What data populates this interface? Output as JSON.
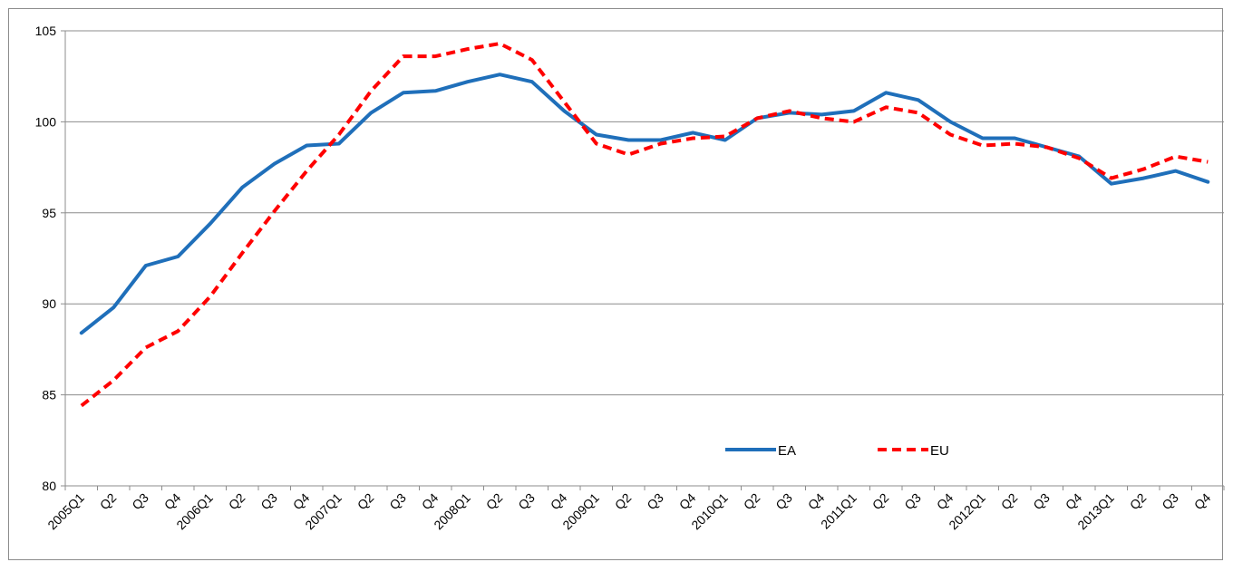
{
  "chart_data": {
    "type": "line",
    "title": "",
    "xlabel": "",
    "ylabel": "",
    "ylim": [
      80,
      105
    ],
    "yticks": [
      80,
      85,
      90,
      95,
      100,
      105
    ],
    "grid": "horizontal",
    "legend_placement": "bottom-right",
    "categories": [
      "2005Q1",
      "Q2",
      "Q3",
      "Q4",
      "2006Q1",
      "Q2",
      "Q3",
      "Q4",
      "2007Q1",
      "Q2",
      "Q3",
      "Q4",
      "2008Q1",
      "Q2",
      "Q3",
      "Q4",
      "2009Q1",
      "Q2",
      "Q3",
      "Q4",
      "2010Q1",
      "Q2",
      "Q3",
      "Q4",
      "2011Q1",
      "Q2",
      "Q3",
      "Q4",
      "2012Q1",
      "Q2",
      "Q3",
      "Q4",
      "2013Q1",
      "Q2",
      "Q3",
      "Q4"
    ],
    "series": [
      {
        "name": "EA",
        "color": "#1f6fba",
        "style": "solid",
        "values": [
          88.4,
          89.8,
          92.1,
          92.6,
          94.4,
          96.4,
          97.7,
          98.7,
          98.8,
          100.5,
          101.6,
          101.7,
          102.2,
          102.6,
          102.2,
          100.6,
          99.3,
          99.0,
          99.0,
          99.4,
          99.0,
          100.2,
          100.5,
          100.4,
          100.6,
          101.6,
          101.2,
          100.0,
          99.1,
          99.1,
          98.6,
          98.1,
          96.6,
          96.9,
          97.3,
          96.7
        ]
      },
      {
        "name": "EU",
        "color": "#ff0000",
        "style": "dashed",
        "values": [
          84.4,
          85.8,
          87.6,
          88.5,
          90.4,
          92.8,
          95.1,
          97.3,
          99.3,
          101.7,
          103.6,
          103.6,
          104.0,
          104.3,
          103.4,
          101.1,
          98.8,
          98.2,
          98.8,
          99.1,
          99.2,
          100.2,
          100.6,
          100.2,
          100.0,
          100.8,
          100.5,
          99.3,
          98.7,
          98.8,
          98.6,
          98.0,
          96.9,
          97.4,
          98.1,
          97.8
        ]
      }
    ]
  }
}
